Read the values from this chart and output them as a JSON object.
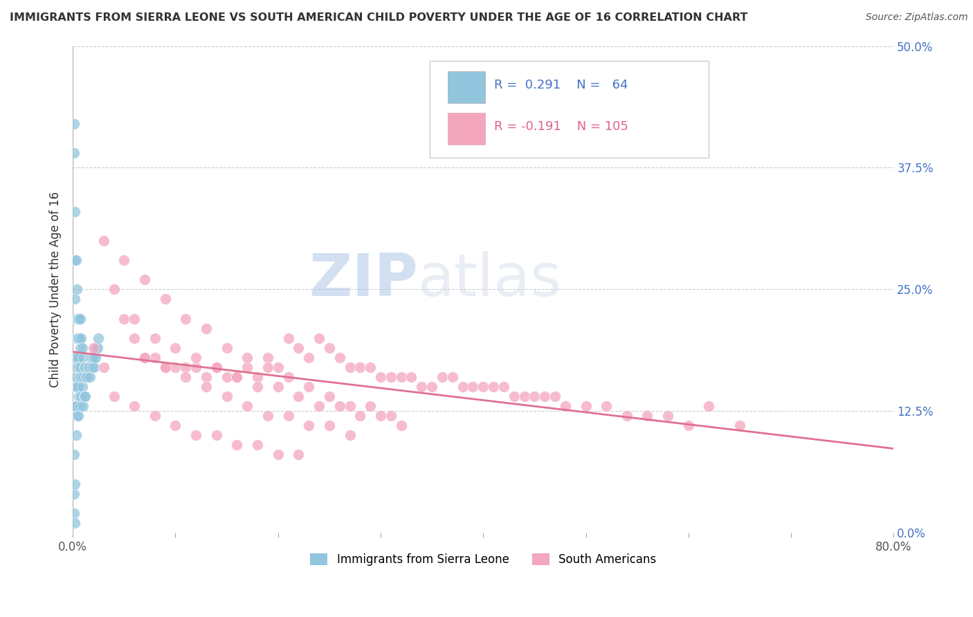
{
  "title": "IMMIGRANTS FROM SIERRA LEONE VS SOUTH AMERICAN CHILD POVERTY UNDER THE AGE OF 16 CORRELATION CHART",
  "source": "Source: ZipAtlas.com",
  "ylabel_label": "Child Poverty Under the Age of 16",
  "y_tick_vals": [
    0.0,
    0.125,
    0.25,
    0.375,
    0.5
  ],
  "y_tick_labels": [
    "0.0%",
    "12.5%",
    "25.0%",
    "37.5%",
    "50.0%"
  ],
  "x_tick_vals": [
    0.0,
    0.1,
    0.2,
    0.3,
    0.4,
    0.5,
    0.6,
    0.7,
    0.8
  ],
  "x_tick_labels": [
    "0.0%",
    "",
    "",
    "",
    "",
    "",
    "",
    "",
    "80.0%"
  ],
  "legend_line1": "R =  0.291   N =  64",
  "legend_line2": "R = -0.191   N = 105",
  "color_blue": "#92c5de",
  "color_pink": "#f4a6be",
  "color_trend_blue": "#2166ac",
  "color_trend_pink": "#e07090",
  "watermark_zip": "ZIP",
  "watermark_atlas": "atlas",
  "xlim": [
    0.0,
    0.8
  ],
  "ylim": [
    0.0,
    0.5
  ],
  "blue_scatter_x": [
    0.001,
    0.001,
    0.001,
    0.001,
    0.002,
    0.002,
    0.002,
    0.002,
    0.002,
    0.002,
    0.002,
    0.003,
    0.003,
    0.003,
    0.003,
    0.003,
    0.003,
    0.003,
    0.004,
    0.004,
    0.004,
    0.004,
    0.004,
    0.004,
    0.005,
    0.005,
    0.005,
    0.005,
    0.005,
    0.006,
    0.006,
    0.006,
    0.006,
    0.007,
    0.007,
    0.007,
    0.007,
    0.008,
    0.008,
    0.008,
    0.009,
    0.009,
    0.01,
    0.01,
    0.01,
    0.011,
    0.011,
    0.012,
    0.012,
    0.013,
    0.014,
    0.015,
    0.016,
    0.017,
    0.018,
    0.019,
    0.02,
    0.021,
    0.022,
    0.023,
    0.024,
    0.025,
    0.001,
    0.002
  ],
  "blue_scatter_y": [
    0.42,
    0.39,
    0.08,
    0.04,
    0.33,
    0.28,
    0.24,
    0.18,
    0.15,
    0.13,
    0.05,
    0.28,
    0.22,
    0.2,
    0.18,
    0.16,
    0.13,
    0.1,
    0.25,
    0.22,
    0.2,
    0.17,
    0.15,
    0.12,
    0.22,
    0.2,
    0.18,
    0.15,
    0.12,
    0.22,
    0.2,
    0.17,
    0.14,
    0.22,
    0.19,
    0.16,
    0.13,
    0.2,
    0.17,
    0.14,
    0.19,
    0.15,
    0.18,
    0.16,
    0.13,
    0.17,
    0.14,
    0.17,
    0.14,
    0.16,
    0.16,
    0.17,
    0.17,
    0.16,
    0.18,
    0.17,
    0.18,
    0.17,
    0.18,
    0.19,
    0.19,
    0.2,
    0.02,
    0.01
  ],
  "pink_scatter_x": [
    0.02,
    0.03,
    0.04,
    0.05,
    0.06,
    0.07,
    0.08,
    0.09,
    0.1,
    0.11,
    0.12,
    0.13,
    0.14,
    0.15,
    0.16,
    0.17,
    0.18,
    0.19,
    0.2,
    0.21,
    0.22,
    0.23,
    0.24,
    0.25,
    0.26,
    0.27,
    0.28,
    0.29,
    0.3,
    0.31,
    0.32,
    0.33,
    0.34,
    0.35,
    0.36,
    0.37,
    0.38,
    0.39,
    0.4,
    0.41,
    0.42,
    0.43,
    0.44,
    0.45,
    0.46,
    0.47,
    0.48,
    0.5,
    0.52,
    0.54,
    0.56,
    0.58,
    0.6,
    0.62,
    0.65,
    0.03,
    0.05,
    0.07,
    0.09,
    0.11,
    0.13,
    0.15,
    0.17,
    0.19,
    0.21,
    0.23,
    0.25,
    0.27,
    0.29,
    0.31,
    0.06,
    0.08,
    0.1,
    0.12,
    0.14,
    0.16,
    0.18,
    0.2,
    0.22,
    0.24,
    0.26,
    0.28,
    0.3,
    0.32,
    0.07,
    0.09,
    0.11,
    0.13,
    0.15,
    0.17,
    0.19,
    0.21,
    0.23,
    0.25,
    0.27,
    0.04,
    0.06,
    0.08,
    0.1,
    0.12,
    0.14,
    0.16,
    0.18,
    0.2,
    0.22
  ],
  "pink_scatter_y": [
    0.19,
    0.17,
    0.25,
    0.22,
    0.2,
    0.18,
    0.18,
    0.17,
    0.17,
    0.17,
    0.17,
    0.16,
    0.17,
    0.16,
    0.16,
    0.17,
    0.16,
    0.18,
    0.17,
    0.2,
    0.19,
    0.18,
    0.2,
    0.19,
    0.18,
    0.17,
    0.17,
    0.17,
    0.16,
    0.16,
    0.16,
    0.16,
    0.15,
    0.15,
    0.16,
    0.16,
    0.15,
    0.15,
    0.15,
    0.15,
    0.15,
    0.14,
    0.14,
    0.14,
    0.14,
    0.14,
    0.13,
    0.13,
    0.13,
    0.12,
    0.12,
    0.12,
    0.11,
    0.13,
    0.11,
    0.3,
    0.28,
    0.26,
    0.24,
    0.22,
    0.21,
    0.19,
    0.18,
    0.17,
    0.16,
    0.15,
    0.14,
    0.13,
    0.13,
    0.12,
    0.22,
    0.2,
    0.19,
    0.18,
    0.17,
    0.16,
    0.15,
    0.15,
    0.14,
    0.13,
    0.13,
    0.12,
    0.12,
    0.11,
    0.18,
    0.17,
    0.16,
    0.15,
    0.14,
    0.13,
    0.12,
    0.12,
    0.11,
    0.11,
    0.1,
    0.14,
    0.13,
    0.12,
    0.11,
    0.1,
    0.1,
    0.09,
    0.09,
    0.08,
    0.08
  ]
}
